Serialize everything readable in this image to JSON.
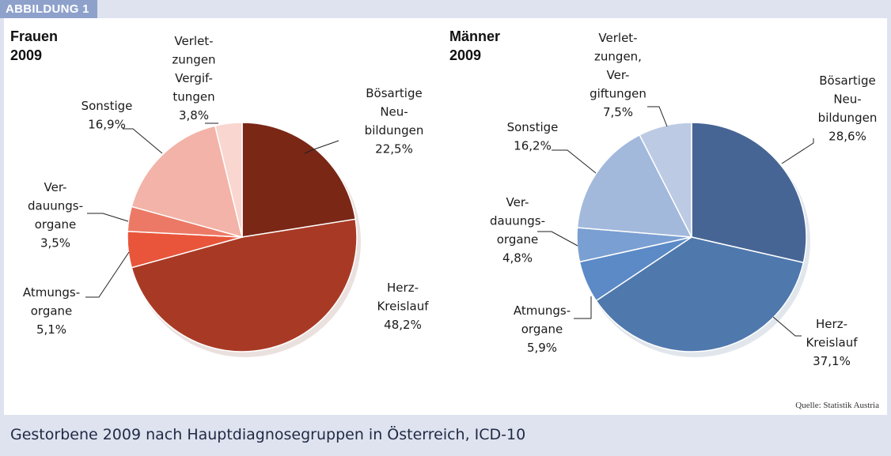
{
  "badge": "ABBILDUNG 1",
  "caption": "Gestorbene 2009 nach Hauptdiagnosegruppen in Österreich, ICD-10",
  "source": "Quelle: Statistik Austria",
  "chart_data": [
    {
      "type": "pie",
      "title": [
        "Frauen",
        "2009"
      ],
      "categories": [
        "Bösartige Neubildungen",
        "Herz-Kreislauf",
        "Atmungsorgane",
        "Verdauungsorgane",
        "Sonstige",
        "Verletzungen Vergiftungen"
      ],
      "values": [
        22.5,
        48.2,
        5.1,
        3.5,
        16.9,
        3.8
      ],
      "value_labels": [
        "22,5%",
        "48,2%",
        "5,1%",
        "3,5%",
        "16,9%",
        "3,8%"
      ],
      "labels": [
        [
          "Bösartige",
          "Neu-",
          "bildungen",
          "22,5%"
        ],
        [
          "Herz-",
          "Kreislauf",
          "48,2%"
        ],
        [
          "Atmungs-",
          "organe",
          "5,1%"
        ],
        [
          "Ver-",
          "dauungs-",
          "organe",
          "3,5%"
        ],
        [
          "Sonstige",
          "16,9%"
        ],
        [
          "Verlet-",
          "zungen",
          "Vergif-",
          "tungen",
          "3,8%"
        ]
      ],
      "colors": [
        "#7a2716",
        "#a83a25",
        "#e8553a",
        "#ec7966",
        "#f3b3a8",
        "#f9d6d0"
      ]
    },
    {
      "type": "pie",
      "title": [
        "Männer",
        "2009"
      ],
      "categories": [
        "Bösartige Neubildungen",
        "Herz-Kreislauf",
        "Atmungsorgane",
        "Verdauungsorgane",
        "Sonstige",
        "Verletzungen, Vergiftungen"
      ],
      "values": [
        28.6,
        37.1,
        5.9,
        4.8,
        16.2,
        7.5
      ],
      "value_labels": [
        "28,6%",
        "37,1%",
        "5,9%",
        "4,8%",
        "16,2%",
        "7,5%"
      ],
      "labels": [
        [
          "Bösartige",
          "Neu-",
          "bildungen",
          "28,6%"
        ],
        [
          "Herz-",
          "Kreislauf",
          "37,1%"
        ],
        [
          "Atmungs-",
          "organe",
          "5,9%"
        ],
        [
          "Ver-",
          "dauungs-",
          "organe",
          "4,8%"
        ],
        [
          "Sonstige",
          "16,2%"
        ],
        [
          "Verlet-",
          "zungen,",
          "Ver-",
          "giftungen",
          "7,5%"
        ]
      ],
      "colors": [
        "#466594",
        "#4f78ad",
        "#5b8ac6",
        "#7a9fd2",
        "#a2b9dc",
        "#bccbe3"
      ]
    }
  ]
}
